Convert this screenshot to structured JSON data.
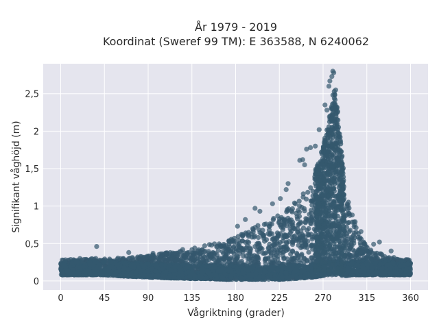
{
  "chart_data": {
    "type": "scatter",
    "title": "År 1979 - 2019",
    "subtitle": "Koordinat (Sweref 99 TM): E 363588, N 6240062",
    "xlabel": "Vågriktning (grader)",
    "ylabel": "Signifikant våghöjd (m)",
    "xlim": [
      -18,
      378
    ],
    "ylim": [
      -0.12,
      2.9
    ],
    "xticks": [
      0,
      45,
      90,
      135,
      180,
      225,
      270,
      315,
      360
    ],
    "xtick_labels": [
      "0",
      "45",
      "90",
      "135",
      "180",
      "225",
      "270",
      "315",
      "360"
    ],
    "yticks": [
      0,
      0.5,
      1,
      1.5,
      2,
      2.5
    ],
    "ytick_labels": [
      "0",
      "0,5",
      "1",
      "1,5",
      "2",
      "2,5"
    ],
    "grid": true,
    "marker_color": "#34586e",
    "plot_background": "#e5e5ee",
    "envelope": {
      "direction": [
        0,
        20,
        45,
        70,
        90,
        110,
        135,
        150,
        170,
        180,
        200,
        215,
        225,
        240,
        250,
        260,
        265,
        270,
        275,
        278,
        282,
        285,
        290,
        295,
        300,
        310,
        320,
        340,
        360
      ],
      "upper_height": [
        0.28,
        0.3,
        0.3,
        0.32,
        0.34,
        0.38,
        0.45,
        0.48,
        0.53,
        0.58,
        0.72,
        0.82,
        0.9,
        1.05,
        1.2,
        1.4,
        1.6,
        1.8,
        2.1,
        2.4,
        2.6,
        2.3,
        1.6,
        1.1,
        0.9,
        0.55,
        0.4,
        0.32,
        0.28
      ],
      "lower_height": [
        0.08,
        0.08,
        0.08,
        0.06,
        0.05,
        0.04,
        0.03,
        0.03,
        0.02,
        0.02,
        0.02,
        0.02,
        0.02,
        0.03,
        0.04,
        0.05,
        0.06,
        0.07,
        0.08,
        0.08,
        0.08,
        0.08,
        0.07,
        0.07,
        0.08,
        0.08,
        0.08,
        0.08,
        0.08
      ]
    },
    "outliers": [
      {
        "x": 280,
        "y": 2.8
      },
      {
        "x": 281,
        "y": 2.78
      },
      {
        "x": 279,
        "y": 2.73
      },
      {
        "x": 277,
        "y": 2.67
      },
      {
        "x": 276,
        "y": 2.6
      },
      {
        "x": 283,
        "y": 2.55
      },
      {
        "x": 272,
        "y": 2.35
      },
      {
        "x": 274,
        "y": 2.28
      },
      {
        "x": 266,
        "y": 2.02
      },
      {
        "x": 262,
        "y": 1.8
      },
      {
        "x": 257,
        "y": 1.78
      },
      {
        "x": 253,
        "y": 1.76
      },
      {
        "x": 249,
        "y": 1.62
      },
      {
        "x": 246,
        "y": 1.61
      },
      {
        "x": 251,
        "y": 1.55
      },
      {
        "x": 234,
        "y": 1.3
      },
      {
        "x": 232,
        "y": 1.22
      },
      {
        "x": 226,
        "y": 1.1
      },
      {
        "x": 218,
        "y": 1.03
      },
      {
        "x": 200,
        "y": 0.97
      },
      {
        "x": 205,
        "y": 0.93
      },
      {
        "x": 190,
        "y": 0.82
      },
      {
        "x": 182,
        "y": 0.73
      },
      {
        "x": 300,
        "y": 0.88
      },
      {
        "x": 303,
        "y": 0.79
      },
      {
        "x": 309,
        "y": 0.66
      },
      {
        "x": 322,
        "y": 0.49
      },
      {
        "x": 328,
        "y": 0.52
      },
      {
        "x": 37,
        "y": 0.46
      },
      {
        "x": 70,
        "y": 0.38
      },
      {
        "x": 95,
        "y": 0.37
      },
      {
        "x": 340,
        "y": 0.4
      }
    ]
  }
}
